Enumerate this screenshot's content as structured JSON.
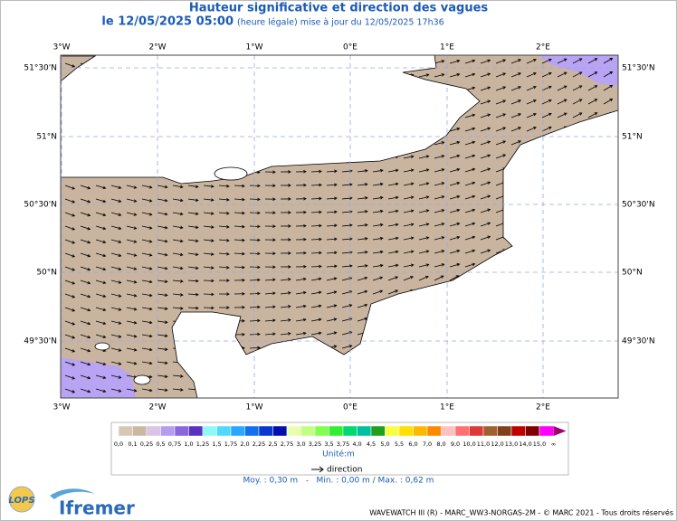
{
  "header": {
    "title": "Hauteur significative et direction des vagues",
    "date": "le 12/05/2025 05:00",
    "update": "(heure légale) mise à jour du 12/05/2025 17h36"
  },
  "map": {
    "lon_labels": [
      "3°W",
      "2°W",
      "1°W",
      "0°E",
      "1°E",
      "2°E"
    ],
    "lat_labels": [
      "51°30'N",
      "51°N",
      "50°30'N",
      "50°N",
      "49°30'N"
    ]
  },
  "legend": {
    "labels": [
      "0,0",
      "0,1",
      "0,25",
      "0,5",
      "0,75",
      "1,0",
      "1,25",
      "1,5",
      "1,75",
      "2,0",
      "2,25",
      "2,5",
      "2,75",
      "3,0",
      "3,25",
      "3,5",
      "3,75",
      "4,0",
      "4,5",
      "5,0",
      "5,5",
      "6,0",
      "7,0",
      "8,0",
      "9,0",
      "10,0",
      "11,0",
      "12,0",
      "13,0",
      "14,0",
      "15,0",
      "∞"
    ],
    "colors": [
      "#d8c7b4",
      "#cbb8a3",
      "#d9c3e6",
      "#b49cf0",
      "#8a66dc",
      "#5a30c0",
      "#8ff8f8",
      "#50d8ff",
      "#28a8ff",
      "#1070f0",
      "#0838d0",
      "#0010b0",
      "#e8ffb0",
      "#c0ff80",
      "#80ff50",
      "#30f030",
      "#00d870",
      "#00c0a0",
      "#20a020",
      "#f8ff40",
      "#ffe000",
      "#ffb800",
      "#ff8800",
      "#ffc0c0",
      "#ff7070",
      "#e03838",
      "#a06030",
      "#804018",
      "#c00000",
      "#800000",
      "#ff00ff",
      "#a00070"
    ],
    "unit": "Unité:m",
    "direction": "direction"
  },
  "stats": "Moy. : 0,30 m   -   Min. : 0,00 m / Max. : 0,62 m",
  "footer": "WAVEWATCH III (R) - MARC_WW3-NORGAS-2M - © MARC 2021 - Tous droits réservés",
  "logos": {
    "lops": "LOPS",
    "ifremer": "Ifremer"
  }
}
